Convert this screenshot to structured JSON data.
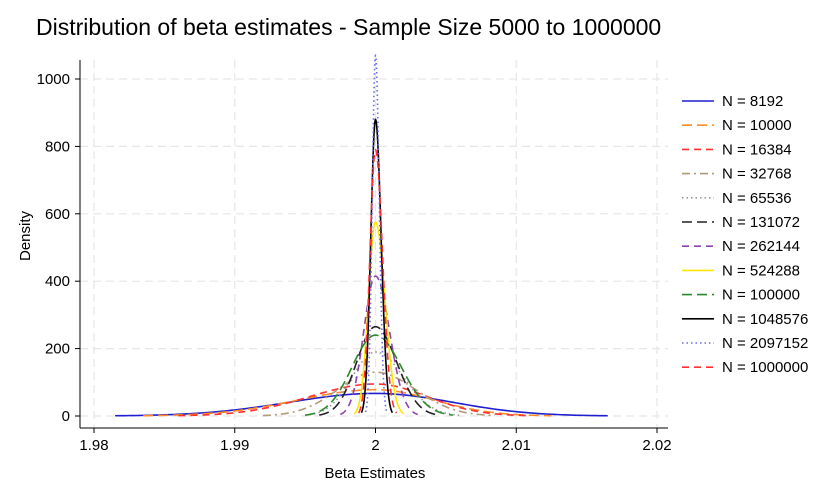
{
  "chart_data": {
    "type": "line",
    "title": "Distribution of beta estimates - Sample Size 5000 to 1000000",
    "xlabel": "Beta Estimates",
    "ylabel": "Density",
    "xlim": [
      1.98,
      2.02
    ],
    "ylim": [
      0,
      1100
    ],
    "x_ticks": [
      1.98,
      1.99,
      2.0,
      2.01,
      2.02
    ],
    "x_tick_labels": [
      "1.98",
      "1.99",
      "2",
      "2.01",
      "2.02"
    ],
    "y_ticks": [
      0,
      200,
      400,
      600,
      800,
      1000
    ],
    "y_tick_labels": [
      "0",
      "200",
      "400",
      "600",
      "800",
      "1000"
    ],
    "grid": true,
    "legend_position": "right",
    "series": [
      {
        "name": "N = 8192",
        "color": "#1f1fd0",
        "dash": "solid",
        "x_range": [
          1.9815,
          2.0165
        ],
        "peak": 67
      },
      {
        "name": "N = 10000",
        "color": "#ff8c28",
        "dash": "longdash",
        "x_range": [
          1.9835,
          2.0125
        ],
        "peak": 78
      },
      {
        "name": "N = 16384",
        "color": "#ff3030",
        "dash": "dash",
        "x_range": [
          1.986,
          2.011
        ],
        "peak": 95
      },
      {
        "name": "N = 32768",
        "color": "#b09a78",
        "dash": "dashdot",
        "x_range": [
          1.992,
          2.0085
        ],
        "peak": 130
      },
      {
        "name": "N = 65536",
        "color": "#999999",
        "dash": "dot",
        "x_range": [
          1.995,
          2.006
        ],
        "peak": 190
      },
      {
        "name": "N = 131072",
        "color": "#222222",
        "dash": "longdash",
        "x_range": [
          1.996,
          2.0045
        ],
        "peak": 265
      },
      {
        "name": "N = 262144",
        "color": "#8e44ad",
        "dash": "dash",
        "x_range": [
          1.9975,
          2.003
        ],
        "peak": 415
      },
      {
        "name": "N = 524288",
        "color": "#ffe600",
        "dash": "solid",
        "x_range": [
          1.9985,
          2.002
        ],
        "peak": 575
      },
      {
        "name": "N = 100000",
        "color": "#2a8a2a",
        "dash": "longdash",
        "x_range": [
          1.995,
          2.0055
        ],
        "peak": 240
      },
      {
        "name": "N = 1048576",
        "color": "#000000",
        "dash": "solid",
        "x_range": [
          1.999,
          2.0012
        ],
        "peak": 880
      },
      {
        "name": "N = 2097152",
        "color": "#6a6aee",
        "dash": "dot",
        "x_range": [
          1.9993,
          2.0008
        ],
        "peak": 1070
      },
      {
        "name": "N = 1000000",
        "color": "#ff3030",
        "dash": "dash",
        "x_range": [
          1.9988,
          2.0015
        ],
        "peak": 790
      }
    ]
  }
}
